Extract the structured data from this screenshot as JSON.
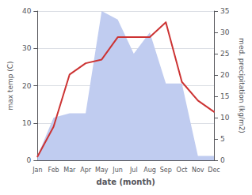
{
  "chart_data": {
    "type": "line",
    "xlabel": "date (month)",
    "ylabel": "max temp (C)",
    "y2label": "med. precipitation (kg/m2)",
    "categories": [
      "Jan",
      "Feb",
      "Mar",
      "Apr",
      "May",
      "Jun",
      "Jul",
      "Aug",
      "Sep",
      "Oct",
      "Nov",
      "Dec"
    ],
    "series": [
      {
        "type": "area",
        "axis": "y2",
        "color": "#c0ccf0",
        "values": [
          1,
          10,
          11,
          11,
          35,
          33,
          25,
          30,
          18,
          18,
          1,
          1
        ]
      },
      {
        "type": "line",
        "color": "#cc3333",
        "values": [
          1,
          9,
          23,
          26,
          27,
          33,
          33,
          33,
          37,
          21,
          16,
          13
        ]
      }
    ],
    "ylim": [
      0,
      40
    ],
    "yticks": [
      0,
      10,
      20,
      30,
      40
    ],
    "y2lim": [
      0,
      35
    ],
    "y2ticks": [
      0,
      5,
      10,
      15,
      20,
      25,
      30,
      35
    ],
    "grid": true
  }
}
